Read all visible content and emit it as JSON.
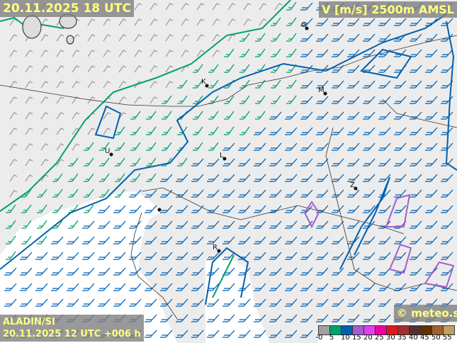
{
  "header": {
    "valid_time": "20.11.2025 18 UTC",
    "variable": "V [m/s] 2500m AMSL"
  },
  "footer": {
    "model": "ALADIN/SI",
    "run": "20.11.2025 12 UTC +006 h",
    "copyright": "© meteo.si"
  },
  "legend": {
    "unit": "m/s",
    "ticks": [
      "0",
      "5",
      "10",
      "15",
      "20",
      "25",
      "30",
      "35",
      "40",
      "45",
      "50",
      "55"
    ],
    "colors": [
      "#a0a0a0",
      "#00a070",
      "#0060b0",
      "#a060d0",
      "#e040f0",
      "#f000a0",
      "#e01818",
      "#a03030",
      "#503030",
      "#603000",
      "#a06030",
      "#c0a060"
    ]
  },
  "map": {
    "cities": [
      "G",
      "K",
      "M",
      "U",
      "L",
      "Z",
      "R"
    ],
    "land_color": "#e8e8e8",
    "sea_color": "#ffffff",
    "wind_colors": {
      "calm": "#a0a0a0",
      "moderate": "#00a070",
      "strong": "#0060b0"
    }
  }
}
